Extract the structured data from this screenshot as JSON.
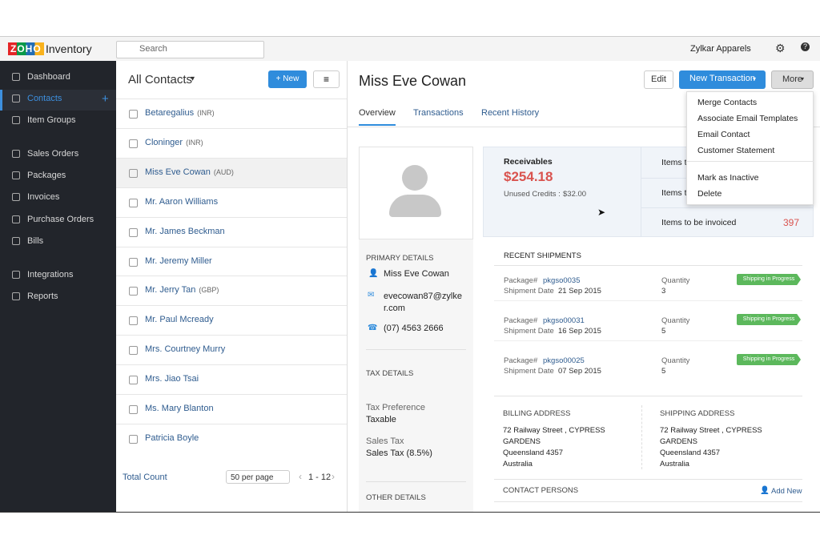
{
  "header": {
    "logo": "ZOHO",
    "app": "Inventory",
    "search": "Search",
    "org": "Zylkar Apparels"
  },
  "sidebar": {
    "items": [
      "Dashboard",
      "Contacts",
      "Item Groups",
      "Sales Orders",
      "Packages",
      "Invoices",
      "Purchase Orders",
      "Bills",
      "Integrations",
      "Reports"
    ]
  },
  "list": {
    "title": "All Contacts",
    "new": "New",
    "contacts": [
      {
        "name": "Betaregalius",
        "currency": "(INR)"
      },
      {
        "name": "Cloninger",
        "currency": "(INR)"
      },
      {
        "name": "Miss Eve Cowan",
        "currency": "(AUD)"
      },
      {
        "name": "Mr. Aaron Williams"
      },
      {
        "name": "Mr. James Beckman"
      },
      {
        "name": "Mr. Jeremy Miller"
      },
      {
        "name": "Mr. Jerry Tan",
        "currency": "(GBP)"
      },
      {
        "name": "Mr. Paul Mcready"
      },
      {
        "name": "Mrs. Courtney Murry"
      },
      {
        "name": "Mrs. Jiao Tsai"
      },
      {
        "name": "Ms. Mary Blanton"
      },
      {
        "name": "Patricia Boyle"
      }
    ],
    "total": "Total Count",
    "per_page": "50 per page",
    "range": "1 - 12"
  },
  "detail": {
    "name": "Miss Eve Cowan",
    "buttons": [
      "Edit",
      "New Transaction",
      "More"
    ],
    "tabs": [
      "Overview",
      "Transactions",
      "Recent History"
    ],
    "menu": [
      [
        "Merge Contacts",
        "Associate Email Templates",
        "Email Contact",
        "Customer Statement"
      ],
      [
        "Mark as Inactive",
        "Delete"
      ]
    ],
    "receivables": {
      "label": "Receivables",
      "amount": "$254.18",
      "unused_label": "Unused Credits :",
      "unused": "$32.00"
    },
    "items": [
      {
        "label": "Items t"
      },
      {
        "label": "Items t"
      },
      {
        "label": "Items to be invoiced",
        "value": "397"
      }
    ],
    "primary": {
      "heading": "PRIMARY DETAILS",
      "name": "Miss Eve Cowan",
      "email": "evecowan87@zylker.com",
      "phone": "(07) 4563 2666"
    },
    "tax": {
      "heading": "TAX DETAILS",
      "pref_label": "Tax Preference",
      "pref": "Taxable",
      "tax_label": "Sales Tax",
      "tax": "Sales Tax (8.5%)"
    },
    "other": {
      "heading": "OTHER DETAILS"
    },
    "shipments": {
      "heading": "RECENT SHIPMENTS",
      "package_label": "Package#",
      "date_label": "Shipment Date",
      "qty_label": "Quantity",
      "rows": [
        {
          "package": "pkgso0035",
          "date": "21 Sep 2015",
          "qty": "3",
          "status": "Shipping in Progress"
        },
        {
          "package": "pkgso00031",
          "date": "16 Sep 2015",
          "qty": "5",
          "status": "Shipping in Progress"
        },
        {
          "package": "pkgso00025",
          "date": "07 Sep 2015",
          "qty": "5",
          "status": "Shipping in Progress"
        }
      ]
    },
    "billing": {
      "heading": "BILLING ADDRESS",
      "lines": [
        "72 Railway Street , CYPRESS",
        "GARDENS",
        "Queensland 4357",
        "Australia"
      ]
    },
    "shipping": {
      "heading": "SHIPPING ADDRESS",
      "lines": [
        "72 Railway Street , CYPRESS",
        "GARDENS",
        "Queensland 4357",
        "Australia"
      ]
    },
    "contacts": {
      "heading": "CONTACT PERSONS",
      "add": "Add New"
    }
  }
}
